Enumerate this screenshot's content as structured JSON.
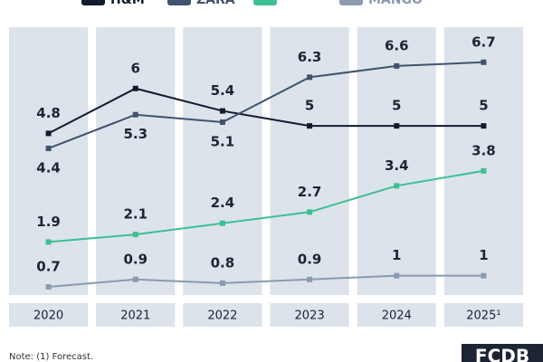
{
  "chart_data": {
    "type": "line",
    "categories": [
      "2020",
      "2021",
      "2022",
      "2023",
      "2024",
      "2025¹"
    ],
    "series": [
      {
        "name": "H&M",
        "color": "#111a2e",
        "values": [
          4.8,
          6.0,
          5.4,
          5.0,
          5.0,
          5.0
        ]
      },
      {
        "name": "ZARA",
        "color": "#41536e",
        "values": [
          4.4,
          5.3,
          5.1,
          6.3,
          6.6,
          6.7
        ]
      },
      {
        "color": "#3dbf93",
        "values": [
          1.9,
          2.1,
          2.4,
          2.7,
          3.4,
          3.8
        ]
      },
      {
        "name": "MANGO",
        "color": "#8a9bb0",
        "values": [
          0.7,
          0.9,
          0.8,
          0.9,
          1.0,
          1.0
        ]
      }
    ],
    "ylim": [
      0,
      8
    ],
    "note": "Note: (1) Forecast.",
    "brand": "FCDB"
  }
}
